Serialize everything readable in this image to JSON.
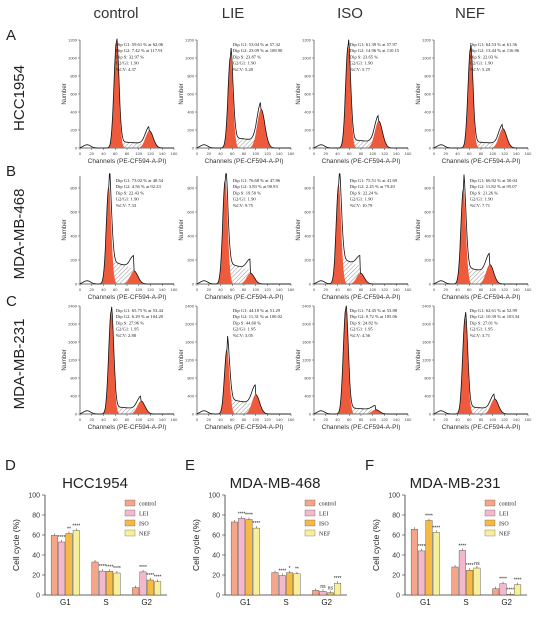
{
  "columns": [
    "control",
    "LIE",
    "ISO",
    "NEF"
  ],
  "panels": {
    "A": {
      "letter": "A",
      "cell_line": "HCC1954"
    },
    "B": {
      "letter": "B",
      "cell_line": "MDA-MB-468"
    },
    "C": {
      "letter": "C",
      "cell_line": "MDA-MB-231"
    },
    "D": {
      "letter": "D",
      "cell_line": "HCC1954"
    },
    "E": {
      "letter": "E",
      "cell_line": "MDA-MB-468"
    },
    "F": {
      "letter": "F",
      "cell_line": "MDA-MB-231"
    }
  },
  "histogram_axes": {
    "xlabel": "Channels (PE-CF594-A-PI)",
    "ylabel": "Number"
  },
  "histograms": [
    {
      "row": 0,
      "col": 0,
      "ymax": 1200,
      "yticks": [
        0,
        200,
        400,
        600,
        800,
        1000,
        1200
      ],
      "xticks": [
        0,
        20,
        40,
        60,
        80,
        100,
        120,
        140,
        160
      ],
      "g1": 62,
      "g2": 118,
      "g1_frac": 0.98,
      "g2_frac": 0.16,
      "s_frac": 0.06,
      "stats": [
        "Dip G1: 59.61 % at 62.06",
        "Dip G2: 7.42 % at 117.91",
        "Dip S: 32.97 %",
        "G2/G1: 1.90",
        "%CV: 4.37"
      ]
    },
    {
      "row": 0,
      "col": 1,
      "ymax": 1200,
      "yticks": [
        0,
        200,
        400,
        600,
        800,
        1000,
        1200
      ],
      "xticks": [
        0,
        20,
        40,
        60,
        80,
        100,
        120,
        140,
        160
      ],
      "g1": 57,
      "g2": 109,
      "g1_frac": 0.85,
      "g2_frac": 0.36,
      "s_frac": 0.1,
      "stats": [
        "Dip G1: 53.04 % at 57.32",
        "Dip G2: 23.09 % at 108.90",
        "Dip S: 23.87 %",
        "G2/G1: 1.90",
        "%CV: 5.20"
      ]
    },
    {
      "row": 0,
      "col": 2,
      "ymax": 1200,
      "yticks": [
        0,
        200,
        400,
        600,
        800,
        1000,
        1200
      ],
      "xticks": [
        0,
        20,
        40,
        60,
        80,
        100,
        120,
        140,
        160
      ],
      "g1": 58,
      "g2": 110,
      "g1_frac": 0.95,
      "g2_frac": 0.25,
      "s_frac": 0.08,
      "stats": [
        "Dip G1: 61.39 % at 57.97",
        "Dip G2: 14.96 % at 110.15",
        "Dip S: 23.65 %",
        "G2/G1: 1.90",
        "%CV: 5.77"
      ]
    },
    {
      "row": 0,
      "col": 3,
      "ymax": 1200,
      "yticks": [
        0,
        200,
        400,
        600,
        800,
        1000,
        1200
      ],
      "xticks": [
        0,
        20,
        40,
        60,
        80,
        100,
        120,
        140,
        160
      ],
      "g1": 62,
      "g2": 117,
      "g1_frac": 0.92,
      "g2_frac": 0.18,
      "s_frac": 0.06,
      "stats": [
        "Dip G1: 64.53 % at 61.56",
        "Dip G2: 13.44 % at 116.96",
        "Dip S: 22.03 %",
        "G2/G1: 1.90",
        "%CV: 5.29"
      ]
    },
    {
      "row": 1,
      "col": 0,
      "ymax": 900,
      "yticks": [
        0,
        200,
        400,
        600,
        800
      ],
      "xticks": [
        0,
        20,
        40,
        60,
        80,
        100,
        120,
        140,
        160
      ],
      "g1": 49,
      "g2": 92,
      "g1_frac": 0.9,
      "g2_frac": 0.12,
      "s_frac": 0.22,
      "stats": [
        "Dip G1: 73.02 % at 48.54",
        "Dip G2: 4.56 % at 92.23",
        "Dip S: 22.43 %",
        "G2/G1: 1.90",
        "%CV: 7.33"
      ]
    },
    {
      "row": 1,
      "col": 1,
      "ymax": 900,
      "yticks": [
        0,
        200,
        400,
        600,
        800
      ],
      "xticks": [
        0,
        20,
        40,
        60,
        80,
        100,
        120,
        140,
        160
      ],
      "g1": 48,
      "g2": 91,
      "g1_frac": 0.96,
      "g2_frac": 0.1,
      "s_frac": 0.2,
      "stats": [
        "Dip G1: 76.68 % at 47.86",
        "Dip G2: 3.83 % at 90.93",
        "Dip S: 19.50 %",
        "G2/G1: 1.90",
        "%CV: 9.75"
      ]
    },
    {
      "row": 1,
      "col": 2,
      "ymax": 900,
      "yticks": [
        0,
        200,
        400,
        600,
        800
      ],
      "xticks": [
        0,
        20,
        40,
        60,
        80,
        100,
        120,
        140,
        160
      ],
      "g1": 42,
      "g2": 79,
      "g1_frac": 0.92,
      "g2_frac": 0.1,
      "s_frac": 0.25,
      "stats": [
        "Dip G1: 75.51 % at 41.69",
        "Dip G2: 2.25 % at 79.20",
        "Dip S: 22.24 %",
        "G2/G1: 1.90",
        "%CV: 10.79"
      ]
    },
    {
      "row": 1,
      "col": 3,
      "ymax": 900,
      "yticks": [
        0,
        200,
        400,
        600,
        800
      ],
      "xticks": [
        0,
        20,
        40,
        60,
        80,
        100,
        120,
        140,
        160
      ],
      "g1": 50,
      "g2": 95,
      "g1_frac": 0.88,
      "g2_frac": 0.18,
      "s_frac": 0.16,
      "stats": [
        "Dip G1: 66.92 % at 50.04",
        "Dip G2: 11.82 % at 95.07",
        "Dip S: 21.26 %",
        "G2/G1: 1.90",
        "%CV: 7.71"
      ]
    },
    {
      "row": 2,
      "col": 0,
      "ymax": 2400,
      "yticks": [
        0,
        400,
        800,
        1200,
        1600,
        2000,
        2400
      ],
      "xticks": [
        0,
        20,
        40,
        60,
        80,
        100,
        120,
        140,
        160
      ],
      "g1": 53,
      "g2": 104,
      "g1_frac": 0.95,
      "g2_frac": 0.12,
      "s_frac": 0.07,
      "stats": [
        "Dip G1: 65.75 % at 53.44",
        "Dip G2: 6.29 % at 104.20",
        "Dip S: 27.96 %",
        "G2/G1: 1.95",
        "%CV: 2.88"
      ]
    },
    {
      "row": 2,
      "col": 1,
      "ymax": 2400,
      "yticks": [
        0,
        400,
        800,
        1200,
        1600,
        2000,
        2400
      ],
      "xticks": [
        0,
        20,
        40,
        60,
        80,
        100,
        120,
        140,
        160
      ],
      "g1": 51,
      "g2": 100,
      "g1_frac": 0.6,
      "g2_frac": 0.18,
      "s_frac": 0.14,
      "stats": [
        "Dip G1: 44.10 % at 51.29",
        "Dip G2: 11.31 % at 100.02",
        "Dip S: 44.60 %",
        "G2/G1: 1.95",
        "%CV: 3.05"
      ]
    },
    {
      "row": 2,
      "col": 2,
      "ymax": 2400,
      "yticks": [
        0,
        400,
        800,
        1200,
        1600,
        2000,
        2400
      ],
      "xticks": [
        0,
        20,
        40,
        60,
        80,
        100,
        120,
        140,
        160
      ],
      "g1": 54,
      "g2": 105,
      "g1_frac": 0.97,
      "g2_frac": 0.04,
      "s_frac": 0.06,
      "stats": [
        "Dip G1: 74.45 % at 53.88",
        "Dip G2: 0.72 % at 105.06",
        "Dip S: 24.82 %",
        "G2/G1: 1.95",
        "%CV: 4.56"
      ]
    },
    {
      "row": 2,
      "col": 3,
      "ymax": 2400,
      "yticks": [
        0,
        400,
        800,
        1200,
        1600,
        2000,
        2400
      ],
      "xticks": [
        0,
        20,
        40,
        60,
        80,
        100,
        120,
        140,
        160
      ],
      "g1": 53,
      "g2": 103,
      "g1_frac": 0.9,
      "g2_frac": 0.14,
      "s_frac": 0.07,
      "stats": [
        "Dip G1: 62.61 % at 52.99",
        "Dip G2: 10.39 % at 103.34",
        "Dip S: 27.01 %",
        "G2/G1: 1.95",
        "%CV: 3.71"
      ]
    }
  ],
  "chart_data": [
    {
      "type": "bar",
      "panel": "D",
      "title": "HCC1954",
      "xlabel": "",
      "ylabel": "Cell cycle (%)",
      "ylim": [
        0,
        100
      ],
      "yticks": [
        0,
        20,
        40,
        60,
        80,
        100
      ],
      "categories": [
        "G1",
        "S",
        "G2"
      ],
      "legend": [
        "control",
        "LEI",
        "ISO",
        "NEF"
      ],
      "series": [
        {
          "name": "control",
          "values": [
            59.6,
            33.0,
            7.4
          ],
          "significance": [
            "",
            "",
            ""
          ]
        },
        {
          "name": "LEI",
          "values": [
            53.0,
            23.9,
            23.1
          ],
          "significance": [
            "****",
            "****",
            "****"
          ]
        },
        {
          "name": "ISO",
          "values": [
            61.4,
            23.7,
            15.0
          ],
          "significance": [
            "**",
            "****",
            "****"
          ]
        },
        {
          "name": "NEF",
          "values": [
            64.5,
            22.0,
            13.4
          ],
          "significance": [
            "****",
            "****",
            "****"
          ]
        }
      ]
    },
    {
      "type": "bar",
      "panel": "E",
      "title": "MDA-MB-468",
      "xlabel": "",
      "ylabel": "Cell cycle (%)",
      "ylim": [
        0,
        100
      ],
      "yticks": [
        0,
        20,
        40,
        60,
        80,
        100
      ],
      "categories": [
        "G1",
        "S",
        "G2"
      ],
      "legend": [
        "control",
        "LEI",
        "ISO",
        "NEF"
      ],
      "series": [
        {
          "name": "control",
          "values": [
            73.0,
            22.4,
            4.6
          ],
          "significance": [
            "",
            "",
            ""
          ]
        },
        {
          "name": "LEI",
          "values": [
            76.7,
            19.5,
            3.8
          ],
          "significance": [
            "****",
            "****",
            "ns"
          ]
        },
        {
          "name": "ISO",
          "values": [
            75.5,
            22.2,
            2.3
          ],
          "significance": [
            "****",
            "*",
            "ns"
          ]
        },
        {
          "name": "NEF",
          "values": [
            66.9,
            21.3,
            11.8
          ],
          "significance": [
            "****",
            "**",
            "****"
          ]
        }
      ]
    },
    {
      "type": "bar",
      "panel": "F",
      "title": "MDA-MB-231",
      "xlabel": "",
      "ylabel": "Cell cycle (%)",
      "ylim": [
        0,
        100
      ],
      "yticks": [
        0,
        20,
        40,
        60,
        80,
        100
      ],
      "categories": [
        "G1",
        "S",
        "G2"
      ],
      "legend": [
        "control",
        "LEI",
        "ISO",
        "NEF"
      ],
      "series": [
        {
          "name": "control",
          "values": [
            65.8,
            28.0,
            6.3
          ],
          "significance": [
            "",
            "",
            ""
          ]
        },
        {
          "name": "LEI",
          "values": [
            44.1,
            44.6,
            11.3
          ],
          "significance": [
            "****",
            "****",
            "****"
          ]
        },
        {
          "name": "ISO",
          "values": [
            74.5,
            24.8,
            0.7
          ],
          "significance": [
            "****",
            "****",
            "****"
          ]
        },
        {
          "name": "NEF",
          "values": [
            62.6,
            27.0,
            10.4
          ],
          "significance": [
            "****",
            "ns",
            "****"
          ]
        }
      ]
    }
  ],
  "colors": {
    "peak_fill": "#ee5a3c",
    "s_hatch": "#777777",
    "control": "#f6a58a",
    "LEI": "#f4b8cc",
    "ISO": "#f5b944",
    "NEF": "#f7ef9a"
  }
}
